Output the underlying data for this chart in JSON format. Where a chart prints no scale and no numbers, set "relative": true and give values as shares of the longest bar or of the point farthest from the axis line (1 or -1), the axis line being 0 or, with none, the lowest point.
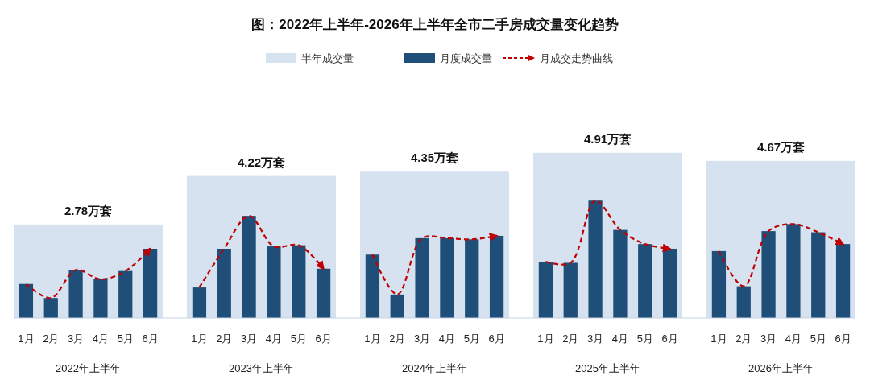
{
  "chart_data": [
    {
      "type": "bar",
      "title": "图：2022年上半年-2026年上半年全市二手房成交量变化趋势",
      "categories": [
        "2022年上半年",
        "2023年上半年",
        "2024年上半年",
        "2025年上半年",
        "2026年上半年"
      ],
      "legend": "top",
      "series": [
        {
          "name": "半年成交量",
          "color": "#d6e2ef",
          "values": [
            2.78,
            4.22,
            4.35,
            4.91,
            4.67
          ],
          "value_labels": [
            "2.78万套",
            "4.22万套",
            "4.35万套",
            "4.91万套",
            "4.67万套"
          ]
        }
      ]
    },
    {
      "type": "bar",
      "relative": true,
      "legend": "top",
      "line_style": "dashed",
      "categories": [
        "1月",
        "2月",
        "3月",
        "4月",
        "5月",
        "6月",
        "1月",
        "2月",
        "3月",
        "4月",
        "5月",
        "6月",
        "1月",
        "2月",
        "3月",
        "4月",
        "5月",
        "6月",
        "1月",
        "2月",
        "3月",
        "4月",
        "5月",
        "6月",
        "1月",
        "2月",
        "3月",
        "4月",
        "5月",
        "6月"
      ],
      "series": [
        {
          "name": "月度成交量",
          "color": "#1f4e79",
          "values": [
            0.29,
            0.17,
            0.41,
            0.33,
            0.4,
            0.59,
            0.26,
            0.59,
            0.87,
            0.61,
            0.62,
            0.42,
            0.54,
            0.2,
            0.68,
            0.68,
            0.67,
            0.7,
            0.48,
            0.47,
            1,
            0.75,
            0.63,
            0.59,
            0.57,
            0.27,
            0.74,
            0.8,
            0.73,
            0.63
          ]
        },
        {
          "name": "月成交走势曲线",
          "type": "line",
          "color": "#c00000",
          "values": [
            0.29,
            0.17,
            0.41,
            0.33,
            0.4,
            0.59,
            0.26,
            0.59,
            0.87,
            0.61,
            0.62,
            0.42,
            0.54,
            0.2,
            0.68,
            0.68,
            0.67,
            0.7,
            0.48,
            0.47,
            1,
            0.75,
            0.63,
            0.59,
            0.57,
            0.27,
            0.74,
            0.8,
            0.73,
            0.63
          ]
        }
      ]
    }
  ]
}
